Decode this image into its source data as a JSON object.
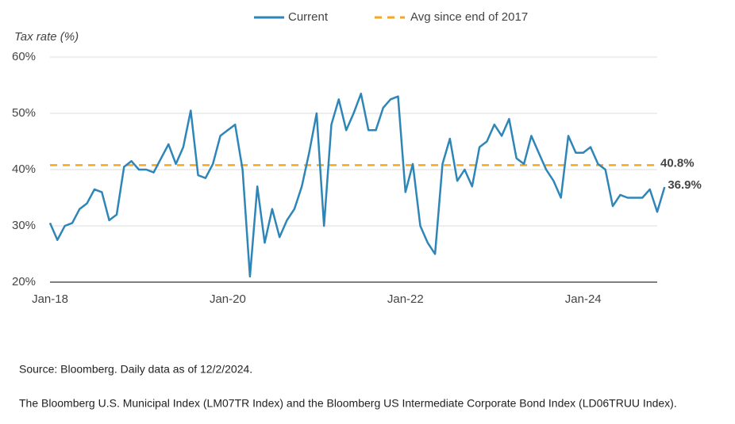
{
  "chart_data": {
    "type": "line",
    "y_axis_label": "Tax rate (%)",
    "x": [
      "2018-01",
      "2018-02",
      "2018-03",
      "2018-04",
      "2018-05",
      "2018-06",
      "2018-07",
      "2018-08",
      "2018-09",
      "2018-10",
      "2018-11",
      "2018-12",
      "2019-01",
      "2019-02",
      "2019-03",
      "2019-04",
      "2019-05",
      "2019-06",
      "2019-07",
      "2019-08",
      "2019-09",
      "2019-10",
      "2019-11",
      "2019-12",
      "2020-01",
      "2020-02",
      "2020-03",
      "2020-04",
      "2020-05",
      "2020-06",
      "2020-07",
      "2020-08",
      "2020-09",
      "2020-10",
      "2020-11",
      "2020-12",
      "2021-01",
      "2021-02",
      "2021-03",
      "2021-04",
      "2021-05",
      "2021-06",
      "2021-07",
      "2021-08",
      "2021-09",
      "2021-10",
      "2021-11",
      "2021-12",
      "2022-01",
      "2022-02",
      "2022-03",
      "2022-04",
      "2022-05",
      "2022-06",
      "2022-07",
      "2022-08",
      "2022-09",
      "2022-10",
      "2022-11",
      "2022-12",
      "2023-01",
      "2023-02",
      "2023-03",
      "2023-04",
      "2023-05",
      "2023-06",
      "2023-07",
      "2023-08",
      "2023-09",
      "2023-10",
      "2023-11",
      "2023-12",
      "2024-01",
      "2024-02",
      "2024-03",
      "2024-04",
      "2024-05",
      "2024-06",
      "2024-07",
      "2024-08",
      "2024-09",
      "2024-10",
      "2024-11",
      "2024-12"
    ],
    "series": [
      {
        "name": "Current",
        "color": "#2e86b8",
        "end_label": "36.9%",
        "values": [
          30.5,
          27.5,
          30,
          30.5,
          33,
          34,
          36.5,
          36,
          31,
          32,
          40.5,
          41.5,
          40,
          40,
          39.5,
          42,
          44.5,
          41,
          44,
          50.5,
          39,
          38.5,
          41,
          46,
          47,
          48,
          40,
          21,
          37,
          27,
          33,
          28,
          31,
          33,
          37,
          43,
          50,
          30,
          48,
          52.5,
          47,
          50,
          53.5,
          47,
          47,
          51,
          52.5,
          53,
          36,
          41,
          30,
          27,
          25,
          41,
          45.5,
          38,
          40,
          37,
          44,
          45,
          48,
          46,
          49,
          42,
          41,
          46,
          43,
          40,
          38,
          35,
          46,
          43,
          43,
          44,
          41,
          40,
          33.5,
          35.5,
          35,
          35,
          35,
          36.5,
          32.5,
          36.9
        ]
      }
    ],
    "reference_line": {
      "name": "Avg since end of 2017",
      "value": 40.8,
      "label": "40.8%",
      "color": "#f5a623",
      "style": "dashed"
    },
    "xlim": [
      "2018-01",
      "2024-12"
    ],
    "xticks": [
      {
        "value": "2018-01",
        "label": "Jan-18"
      },
      {
        "value": "2020-01",
        "label": "Jan-20"
      },
      {
        "value": "2022-01",
        "label": "Jan-22"
      },
      {
        "value": "2024-01",
        "label": "Jan-24"
      }
    ],
    "ylim": [
      20,
      60
    ],
    "yticks": [
      {
        "value": 20,
        "label": "20%"
      },
      {
        "value": 30,
        "label": "30%"
      },
      {
        "value": 40,
        "label": "40%"
      },
      {
        "value": 50,
        "label": "50%"
      },
      {
        "value": 60,
        "label": "60%"
      }
    ],
    "grid": true,
    "notes": [
      "Source: Bloomberg. Daily data as of 12/2/2024.",
      "The Bloomberg U.S. Municipal Index (LM07TR Index) and the Bloomberg US Intermediate Corporate Bond Index (LD06TRUU Index)."
    ]
  }
}
